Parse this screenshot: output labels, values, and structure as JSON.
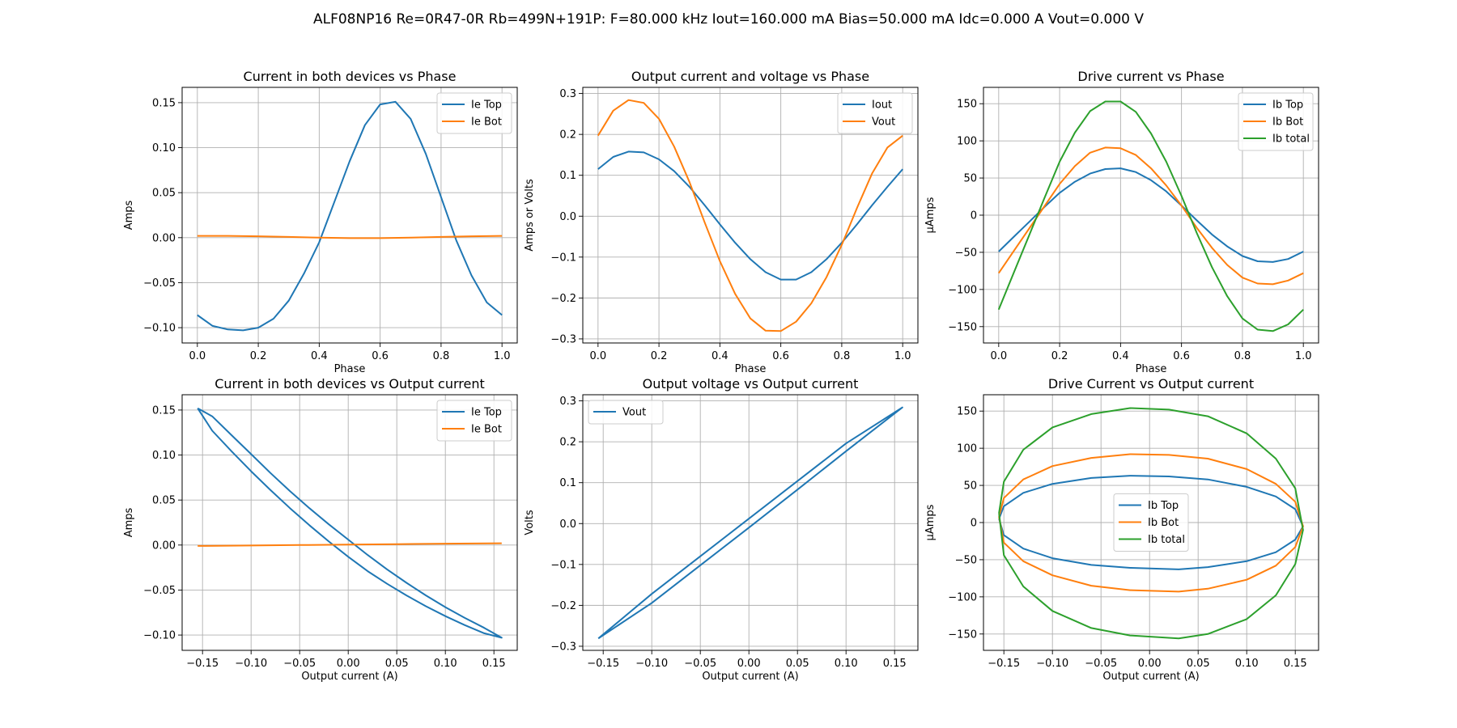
{
  "figure_title": "ALF08NP16 Re=0R47-0R Rb=499N+191P: F=80.000 kHz Iout=160.000 mA Bias=50.000 mA Idc=0.000 A Vout=0.000 V",
  "colors": {
    "c0": "#1f77b4",
    "c1": "#ff7f0e",
    "c2": "#2ca02c",
    "grid": "#b0b0b0"
  },
  "chart_data": [
    {
      "type": "line",
      "title": "Current in both devices vs Phase",
      "xlabel": "Phase",
      "ylabel": "Amps",
      "xlim": [
        -0.05,
        1.05
      ],
      "ylim": [
        -0.117,
        0.167
      ],
      "xticks": [
        0.0,
        0.2,
        0.4,
        0.6,
        0.8,
        1.0
      ],
      "xtick_labels": [
        "0.0",
        "0.2",
        "0.4",
        "0.6",
        "0.8",
        "1.0"
      ],
      "yticks": [
        -0.1,
        -0.05,
        0.0,
        0.05,
        0.1,
        0.15
      ],
      "ytick_labels": [
        "−0.10",
        "−0.05",
        "0.00",
        "0.05",
        "0.10",
        "0.15"
      ],
      "grid": true,
      "legend": "upper right",
      "series": [
        {
          "name": "Ie Top",
          "color": "#1f77b4",
          "x": [
            0.0,
            0.05,
            0.1,
            0.15,
            0.2,
            0.25,
            0.3,
            0.35,
            0.4,
            0.45,
            0.5,
            0.55,
            0.6,
            0.65,
            0.7,
            0.75,
            0.8,
            0.85,
            0.9,
            0.95,
            1.0
          ],
          "y": [
            -0.086,
            -0.098,
            -0.102,
            -0.103,
            -0.1,
            -0.09,
            -0.07,
            -0.04,
            -0.005,
            0.04,
            0.085,
            0.125,
            0.148,
            0.151,
            0.132,
            0.093,
            0.045,
            -0.003,
            -0.042,
            -0.072,
            -0.086
          ]
        },
        {
          "name": "Ie Bot",
          "color": "#ff7f0e",
          "x": [
            0.0,
            0.1,
            0.2,
            0.3,
            0.4,
            0.5,
            0.6,
            0.7,
            0.8,
            0.9,
            1.0
          ],
          "y": [
            0.002,
            0.002,
            0.0015,
            0.0008,
            0.0,
            -0.0005,
            -0.0005,
            0.0,
            0.0008,
            0.0015,
            0.002
          ]
        }
      ]
    },
    {
      "type": "line",
      "title": "Output current and voltage vs Phase",
      "xlabel": "Phase",
      "ylabel": "Amps or Volts",
      "xlim": [
        -0.05,
        1.05
      ],
      "ylim": [
        -0.31,
        0.315
      ],
      "xticks": [
        0.0,
        0.2,
        0.4,
        0.6,
        0.8,
        1.0
      ],
      "xtick_labels": [
        "0.0",
        "0.2",
        "0.4",
        "0.6",
        "0.8",
        "1.0"
      ],
      "yticks": [
        -0.3,
        -0.2,
        -0.1,
        0.0,
        0.1,
        0.2,
        0.3
      ],
      "ytick_labels": [
        "−0.3",
        "−0.2",
        "−0.1",
        "0.0",
        "0.1",
        "0.2",
        "0.3"
      ],
      "grid": true,
      "legend": "upper right",
      "series": [
        {
          "name": "Iout",
          "color": "#1f77b4",
          "x": [
            0.0,
            0.05,
            0.1,
            0.15,
            0.2,
            0.25,
            0.3,
            0.35,
            0.4,
            0.45,
            0.5,
            0.55,
            0.6,
            0.65,
            0.7,
            0.75,
            0.8,
            0.85,
            0.9,
            0.95,
            1.0
          ],
          "y": [
            0.115,
            0.145,
            0.158,
            0.156,
            0.139,
            0.11,
            0.072,
            0.027,
            -0.02,
            -0.065,
            -0.105,
            -0.137,
            -0.155,
            -0.155,
            -0.137,
            -0.105,
            -0.065,
            -0.02,
            0.027,
            0.072,
            0.115
          ]
        },
        {
          "name": "Vout",
          "color": "#ff7f0e",
          "x": [
            0.0,
            0.05,
            0.1,
            0.15,
            0.2,
            0.25,
            0.3,
            0.35,
            0.4,
            0.45,
            0.5,
            0.55,
            0.6,
            0.65,
            0.7,
            0.75,
            0.8,
            0.85,
            0.9,
            0.95,
            1.0
          ],
          "y": [
            0.197,
            0.258,
            0.284,
            0.277,
            0.238,
            0.17,
            0.084,
            -0.015,
            -0.11,
            -0.19,
            -0.25,
            -0.28,
            -0.281,
            -0.258,
            -0.213,
            -0.149,
            -0.07,
            0.02,
            0.105,
            0.168,
            0.197
          ]
        }
      ]
    },
    {
      "type": "line",
      "title": "Drive current vs Phase",
      "xlabel": "Phase",
      "ylabel": "µAmps",
      "xlim": [
        -0.05,
        1.05
      ],
      "ylim": [
        -172,
        172
      ],
      "xticks": [
        0.0,
        0.2,
        0.4,
        0.6,
        0.8,
        1.0
      ],
      "xtick_labels": [
        "0.0",
        "0.2",
        "0.4",
        "0.6",
        "0.8",
        "1.0"
      ],
      "yticks": [
        -150,
        -100,
        -50,
        0,
        50,
        100,
        150
      ],
      "ytick_labels": [
        "−150",
        "−100",
        "−50",
        "0",
        "50",
        "100",
        "150"
      ],
      "grid": true,
      "legend": "upper right",
      "series": [
        {
          "name": "Ib Top",
          "color": "#1f77b4",
          "x": [
            0.0,
            0.05,
            0.1,
            0.15,
            0.2,
            0.25,
            0.3,
            0.35,
            0.4,
            0.45,
            0.5,
            0.55,
            0.6,
            0.65,
            0.7,
            0.75,
            0.8,
            0.85,
            0.9,
            0.95,
            1.0
          ],
          "y": [
            -49,
            -29,
            -9,
            11,
            30,
            45,
            56,
            62,
            63,
            58,
            47,
            32,
            13,
            -7,
            -26,
            -42,
            -55,
            -62,
            -63,
            -59,
            -49
          ]
        },
        {
          "name": "Ib Bot",
          "color": "#ff7f0e",
          "x": [
            0.0,
            0.05,
            0.1,
            0.15,
            0.2,
            0.25,
            0.3,
            0.35,
            0.4,
            0.45,
            0.5,
            0.55,
            0.6,
            0.65,
            0.7,
            0.75,
            0.8,
            0.85,
            0.9,
            0.95,
            1.0
          ],
          "y": [
            -78,
            -48,
            -18,
            12,
            42,
            66,
            84,
            91,
            90,
            81,
            63,
            40,
            13,
            -17,
            -44,
            -67,
            -84,
            -92,
            -93,
            -88,
            -78
          ]
        },
        {
          "name": "Ib total",
          "color": "#2ca02c",
          "x": [
            0.0,
            0.05,
            0.1,
            0.15,
            0.2,
            0.25,
            0.3,
            0.35,
            0.4,
            0.45,
            0.5,
            0.55,
            0.6,
            0.65,
            0.7,
            0.75,
            0.8,
            0.85,
            0.9,
            0.95,
            1.0
          ],
          "y": [
            -127,
            -77,
            -27,
            23,
            72,
            111,
            140,
            153,
            153,
            139,
            110,
            72,
            26,
            -24,
            -70,
            -109,
            -139,
            -154,
            -156,
            -147,
            -127
          ]
        }
      ]
    },
    {
      "type": "line",
      "title": "Current in both devices vs Output current",
      "xlabel": "Output current (A)",
      "ylabel": "Amps",
      "xlim": [
        -0.171,
        0.174
      ],
      "ylim": [
        -0.117,
        0.167
      ],
      "xticks": [
        -0.15,
        -0.1,
        -0.05,
        0.0,
        0.05,
        0.1,
        0.15
      ],
      "xtick_labels": [
        "−0.15",
        "−0.10",
        "−0.05",
        "0.00",
        "0.05",
        "0.10",
        "0.15"
      ],
      "yticks": [
        -0.1,
        -0.05,
        0.0,
        0.05,
        0.1,
        0.15
      ],
      "ytick_labels": [
        "−0.10",
        "−0.05",
        "0.00",
        "0.05",
        "0.10",
        "0.15"
      ],
      "grid": true,
      "legend": "upper right",
      "series": [
        {
          "name": "Ie Top",
          "color": "#1f77b4",
          "x": [
            -0.155,
            -0.14,
            -0.12,
            -0.1,
            -0.08,
            -0.06,
            -0.04,
            -0.02,
            0.0,
            0.02,
            0.04,
            0.06,
            0.08,
            0.1,
            0.12,
            0.14,
            0.158,
            0.14,
            0.12,
            0.1,
            0.08,
            0.06,
            0.04,
            0.02,
            0.0,
            -0.02,
            -0.04,
            -0.06,
            -0.08,
            -0.1,
            -0.12,
            -0.14,
            -0.155
          ],
          "y": [
            0.152,
            0.143,
            0.122,
            0.101,
            0.08,
            0.06,
            0.041,
            0.023,
            0.006,
            -0.011,
            -0.027,
            -0.042,
            -0.056,
            -0.069,
            -0.081,
            -0.092,
            -0.103,
            -0.098,
            -0.089,
            -0.079,
            -0.068,
            -0.056,
            -0.043,
            -0.029,
            -0.013,
            0.004,
            0.022,
            0.041,
            0.061,
            0.082,
            0.104,
            0.127,
            0.152
          ]
        },
        {
          "name": "Ie Bot",
          "color": "#ff7f0e",
          "x": [
            -0.155,
            -0.1,
            -0.05,
            0.0,
            0.05,
            0.1,
            0.158
          ],
          "y": [
            -0.001,
            -0.0005,
            0.0,
            0.0005,
            0.001,
            0.0015,
            0.002
          ]
        }
      ]
    },
    {
      "type": "line",
      "title": "Output voltage vs Output current",
      "xlabel": "Output current (A)",
      "ylabel": "Volts",
      "xlim": [
        -0.171,
        0.174
      ],
      "ylim": [
        -0.31,
        0.315
      ],
      "xticks": [
        -0.15,
        -0.1,
        -0.05,
        0.0,
        0.05,
        0.1,
        0.15
      ],
      "xtick_labels": [
        "−0.15",
        "−0.10",
        "−0.05",
        "0.00",
        "0.05",
        "0.10",
        "0.15"
      ],
      "yticks": [
        -0.3,
        -0.2,
        -0.1,
        0.0,
        0.1,
        0.2,
        0.3
      ],
      "ytick_labels": [
        "−0.3",
        "−0.2",
        "−0.1",
        "0.0",
        "0.1",
        "0.2",
        "0.3"
      ],
      "grid": true,
      "legend": "upper left",
      "series": [
        {
          "name": "Vout",
          "color": "#1f77b4",
          "x": [
            -0.155,
            -0.1,
            -0.05,
            0.0,
            0.05,
            0.1,
            0.158,
            0.1,
            0.05,
            0.0,
            -0.05,
            -0.1,
            -0.155
          ],
          "y": [
            -0.281,
            -0.172,
            -0.08,
            0.012,
            0.104,
            0.196,
            0.284,
            0.177,
            0.083,
            -0.01,
            -0.102,
            -0.194,
            -0.281
          ]
        }
      ]
    },
    {
      "type": "line",
      "title": "Drive Current vs Output current",
      "xlabel": "Output current (A)",
      "ylabel": "µAmps",
      "xlim": [
        -0.171,
        0.174
      ],
      "ylim": [
        -172,
        172
      ],
      "xticks": [
        -0.15,
        -0.1,
        -0.05,
        0.0,
        0.05,
        0.1,
        0.15
      ],
      "xtick_labels": [
        "−0.15",
        "−0.10",
        "−0.05",
        "0.00",
        "0.05",
        "0.10",
        "0.15"
      ],
      "yticks": [
        -150,
        -100,
        -50,
        0,
        50,
        100,
        150
      ],
      "ytick_labels": [
        "−150",
        "−100",
        "−50",
        "0",
        "50",
        "100",
        "150"
      ],
      "grid": true,
      "legend": "center",
      "series": [
        {
          "name": "Ib Top",
          "color": "#1f77b4",
          "x": [
            -0.155,
            -0.15,
            -0.13,
            -0.1,
            -0.06,
            -0.02,
            0.02,
            0.06,
            0.1,
            0.13,
            0.15,
            0.158,
            0.15,
            0.13,
            0.1,
            0.06,
            0.03,
            -0.02,
            -0.06,
            -0.1,
            -0.13,
            -0.15,
            -0.155
          ],
          "y": [
            5,
            22,
            40,
            52,
            60,
            63,
            62,
            58,
            48,
            35,
            18,
            -5,
            -23,
            -40,
            -52,
            -60,
            -63,
            -61,
            -57,
            -48,
            -35,
            -17,
            5
          ]
        },
        {
          "name": "Ib Bot",
          "color": "#ff7f0e",
          "x": [
            -0.155,
            -0.15,
            -0.13,
            -0.1,
            -0.06,
            -0.02,
            0.02,
            0.06,
            0.1,
            0.13,
            0.15,
            0.158,
            0.15,
            0.13,
            0.1,
            0.06,
            0.03,
            -0.02,
            -0.06,
            -0.1,
            -0.13,
            -0.15,
            -0.155
          ],
          "y": [
            8,
            33,
            58,
            76,
            87,
            92,
            91,
            86,
            72,
            52,
            28,
            -5,
            -33,
            -58,
            -77,
            -89,
            -93,
            -91,
            -85,
            -71,
            -52,
            -27,
            8
          ]
        },
        {
          "name": "Ib total",
          "color": "#2ca02c",
          "x": [
            -0.155,
            -0.15,
            -0.13,
            -0.1,
            -0.06,
            -0.02,
            0.02,
            0.06,
            0.1,
            0.13,
            0.15,
            0.158,
            0.15,
            0.13,
            0.1,
            0.06,
            0.03,
            -0.02,
            -0.06,
            -0.1,
            -0.13,
            -0.15,
            -0.155
          ],
          "y": [
            13,
            55,
            98,
            128,
            146,
            154,
            152,
            143,
            120,
            86,
            46,
            -10,
            -56,
            -98,
            -130,
            -150,
            -156,
            -152,
            -142,
            -119,
            -86,
            -44,
            13
          ]
        }
      ]
    }
  ]
}
